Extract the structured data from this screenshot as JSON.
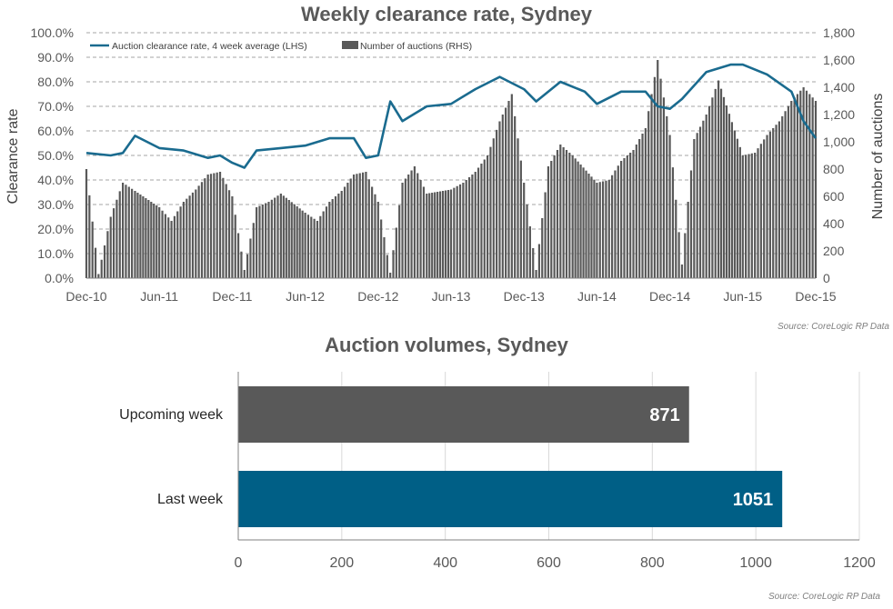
{
  "charts": [
    {
      "type": "bar+line",
      "title": "Weekly clearance rate, Sydney",
      "ylabel_left": "Clearance rate",
      "ylabel_right": "Number of auctions",
      "source": "Source: CoreLogic  RP Data",
      "legend": {
        "line_label": "Auction clearance rate, 4 week average (LHS)",
        "bar_label": "Number of auctions (RHS)"
      },
      "colors": {
        "line": "#1a6b8f",
        "bars": "#595959",
        "grid": "#a6a6a6"
      },
      "x_ticks": [
        "Dec-10",
        "Jun-11",
        "Dec-11",
        "Jun-12",
        "Dec-12",
        "Jun-13",
        "Dec-13",
        "Jun-14",
        "Dec-14",
        "Jun-15",
        "Dec-15"
      ],
      "left_ticks": [
        "0.0%",
        "10.0%",
        "20.0%",
        "30.0%",
        "40.0%",
        "50.0%",
        "60.0%",
        "70.0%",
        "80.0%",
        "90.0%",
        "100.0%"
      ],
      "right_ticks": [
        "0",
        "200",
        "400",
        "600",
        "800",
        "1,000",
        "1,200",
        "1,400",
        "1,600",
        "1,800"
      ],
      "ylim_left": [
        0,
        100
      ],
      "ylim_right": [
        0,
        1800
      ],
      "grid": true,
      "legend_placement": "top-left",
      "chart_data": {
        "type": "bar+line",
        "x_range": [
          "Dec-10",
          "Dec-15"
        ],
        "clearance_rate_4wk_avg_pct": [
          {
            "x": "Dec-10",
            "y": 51
          },
          {
            "x": "Feb-11",
            "y": 50
          },
          {
            "x": "Mar-11",
            "y": 51
          },
          {
            "x": "Apr-11",
            "y": 58
          },
          {
            "x": "Jun-11",
            "y": 53
          },
          {
            "x": "Aug-11",
            "y": 52
          },
          {
            "x": "Oct-11",
            "y": 49
          },
          {
            "x": "Nov-11",
            "y": 50
          },
          {
            "x": "Dec-11",
            "y": 47
          },
          {
            "x": "Jan-12",
            "y": 45
          },
          {
            "x": "Feb-12",
            "y": 52
          },
          {
            "x": "Apr-12",
            "y": 53
          },
          {
            "x": "Jun-12",
            "y": 54
          },
          {
            "x": "Aug-12",
            "y": 57
          },
          {
            "x": "Oct-12",
            "y": 57
          },
          {
            "x": "Nov-12",
            "y": 49
          },
          {
            "x": "Dec-12",
            "y": 50
          },
          {
            "x": "Jan-13",
            "y": 72
          },
          {
            "x": "Feb-13",
            "y": 64
          },
          {
            "x": "Apr-13",
            "y": 70
          },
          {
            "x": "Jun-13",
            "y": 71
          },
          {
            "x": "Aug-13",
            "y": 77
          },
          {
            "x": "Oct-13",
            "y": 82
          },
          {
            "x": "Dec-13",
            "y": 77
          },
          {
            "x": "Jan-14",
            "y": 72
          },
          {
            "x": "Mar-14",
            "y": 80
          },
          {
            "x": "May-14",
            "y": 76
          },
          {
            "x": "Jun-14",
            "y": 71
          },
          {
            "x": "Aug-14",
            "y": 76
          },
          {
            "x": "Oct-14",
            "y": 76
          },
          {
            "x": "Nov-14",
            "y": 70
          },
          {
            "x": "Dec-14",
            "y": 69
          },
          {
            "x": "Jan-15",
            "y": 73
          },
          {
            "x": "Mar-15",
            "y": 84
          },
          {
            "x": "May-15",
            "y": 87
          },
          {
            "x": "Jun-15",
            "y": 87
          },
          {
            "x": "Aug-15",
            "y": 83
          },
          {
            "x": "Oct-15",
            "y": 76
          },
          {
            "x": "Nov-15",
            "y": 64
          },
          {
            "x": "Dec-15",
            "y": 57
          }
        ],
        "number_of_auctions": [
          {
            "x": "Dec-10",
            "y": 800
          },
          {
            "x": "Jan-11",
            "y": 30
          },
          {
            "x": "Feb-11",
            "y": 450
          },
          {
            "x": "Mar-11",
            "y": 700
          },
          {
            "x": "Apr-11",
            "y": 640
          },
          {
            "x": "Jun-11",
            "y": 520
          },
          {
            "x": "Jul-11",
            "y": 420
          },
          {
            "x": "Aug-11",
            "y": 560
          },
          {
            "x": "Sep-11",
            "y": 650
          },
          {
            "x": "Oct-11",
            "y": 760
          },
          {
            "x": "Nov-11",
            "y": 780
          },
          {
            "x": "Dec-11",
            "y": 600
          },
          {
            "x": "Jan-12",
            "y": 60
          },
          {
            "x": "Feb-12",
            "y": 520
          },
          {
            "x": "Mar-12",
            "y": 560
          },
          {
            "x": "Apr-12",
            "y": 620
          },
          {
            "x": "Jun-12",
            "y": 480
          },
          {
            "x": "Jul-12",
            "y": 420
          },
          {
            "x": "Aug-12",
            "y": 560
          },
          {
            "x": "Sep-12",
            "y": 640
          },
          {
            "x": "Oct-12",
            "y": 760
          },
          {
            "x": "Nov-12",
            "y": 780
          },
          {
            "x": "Dec-12",
            "y": 560
          },
          {
            "x": "Jan-13",
            "y": 40
          },
          {
            "x": "Feb-13",
            "y": 700
          },
          {
            "x": "Mar-13",
            "y": 820
          },
          {
            "x": "Apr-13",
            "y": 620
          },
          {
            "x": "Jun-13",
            "y": 650
          },
          {
            "x": "Jul-13",
            "y": 700
          },
          {
            "x": "Aug-13",
            "y": 780
          },
          {
            "x": "Sep-13",
            "y": 900
          },
          {
            "x": "Oct-13",
            "y": 1150
          },
          {
            "x": "Nov-13",
            "y": 1350
          },
          {
            "x": "Dec-13",
            "y": 700
          },
          {
            "x": "Jan-14",
            "y": 60
          },
          {
            "x": "Feb-14",
            "y": 820
          },
          {
            "x": "Mar-14",
            "y": 980
          },
          {
            "x": "Apr-14",
            "y": 900
          },
          {
            "x": "Jun-14",
            "y": 700
          },
          {
            "x": "Jul-14",
            "y": 720
          },
          {
            "x": "Aug-14",
            "y": 860
          },
          {
            "x": "Sep-14",
            "y": 940
          },
          {
            "x": "Oct-14",
            "y": 1100
          },
          {
            "x": "Nov-14",
            "y": 1600
          },
          {
            "x": "Dec-14",
            "y": 1050
          },
          {
            "x": "Jan-15",
            "y": 100
          },
          {
            "x": "Feb-15",
            "y": 1020
          },
          {
            "x": "Mar-15",
            "y": 1200
          },
          {
            "x": "Apr-15",
            "y": 1450
          },
          {
            "x": "Jun-15",
            "y": 900
          },
          {
            "x": "Jul-15",
            "y": 920
          },
          {
            "x": "Aug-15",
            "y": 1050
          },
          {
            "x": "Sep-15",
            "y": 1150
          },
          {
            "x": "Oct-15",
            "y": 1300
          },
          {
            "x": "Nov-15",
            "y": 1400
          },
          {
            "x": "Dec-15",
            "y": 1300
          }
        ]
      }
    },
    {
      "type": "bar",
      "orientation": "horizontal",
      "title": "Auction volumes, Sydney",
      "source": "Source: CoreLogic  RP Data",
      "x_ticks": [
        "0",
        "200",
        "400",
        "600",
        "800",
        "1000",
        "1200"
      ],
      "xlim": [
        0,
        1200
      ],
      "grid": true,
      "chart_data": {
        "type": "bar",
        "categories": [
          "Upcoming week",
          "Last week"
        ],
        "values": [
          871,
          1051
        ],
        "colors": [
          "#595959",
          "#005f86"
        ],
        "value_labels": [
          "871",
          "1051"
        ]
      }
    }
  ]
}
